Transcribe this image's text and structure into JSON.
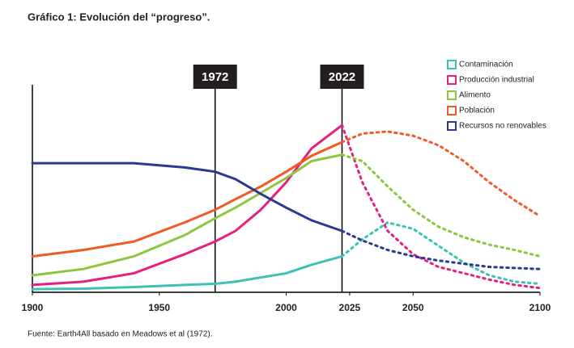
{
  "chart_data": {
    "type": "line",
    "title": "Gráfico 1: Evolución del “progreso”.",
    "source": "Fuente: Earth4All basado en Meadows et al (1972).",
    "x": [
      1900,
      1920,
      1940,
      1960,
      1972,
      1980,
      1990,
      2000,
      2010,
      2022,
      2030,
      2040,
      2050,
      2060,
      2070,
      2080,
      2090,
      2100
    ],
    "series": [
      {
        "name": "Contaminación",
        "color": "#3cc2b4",
        "values": [
          1.5,
          1.7,
          2.5,
          3.5,
          4,
          5,
          7,
          9,
          13,
          17,
          25,
          33,
          30,
          22,
          14,
          8,
          5,
          4
        ]
      },
      {
        "name": "Producción industrial",
        "color": "#e6207e",
        "values": [
          3.5,
          5,
          9,
          18,
          24,
          29,
          39,
          52,
          68,
          79,
          52,
          29,
          18,
          12,
          9,
          6,
          3.5,
          2
        ]
      },
      {
        "name": "Alimento",
        "color": "#8cc63f",
        "values": [
          8,
          11,
          17,
          27,
          35,
          40,
          47,
          54,
          62,
          65,
          62,
          50,
          39,
          31,
          26,
          22.5,
          20,
          17
        ]
      },
      {
        "name": "Población",
        "color": "#f15a24",
        "values": [
          17,
          20,
          24,
          33,
          39,
          44,
          50,
          57,
          64.5,
          71,
          75,
          76,
          74,
          69.5,
          62,
          52,
          43.5,
          36
        ]
      },
      {
        "name": "Recursos no renovables",
        "color": "#2b3990",
        "values": [
          61,
          61,
          61,
          59,
          57,
          53.5,
          46.5,
          40,
          34,
          29,
          24.5,
          20,
          17,
          15,
          13.5,
          12,
          11.5,
          11
        ]
      }
    ],
    "xlim": [
      1900,
      2100
    ],
    "xticks": [
      1900,
      1950,
      2000,
      2025,
      2050,
      2100
    ],
    "ylim": [
      0,
      100
    ],
    "markers": [
      1972,
      2022
    ],
    "dashed_after": 2022,
    "legend": "upper right"
  }
}
